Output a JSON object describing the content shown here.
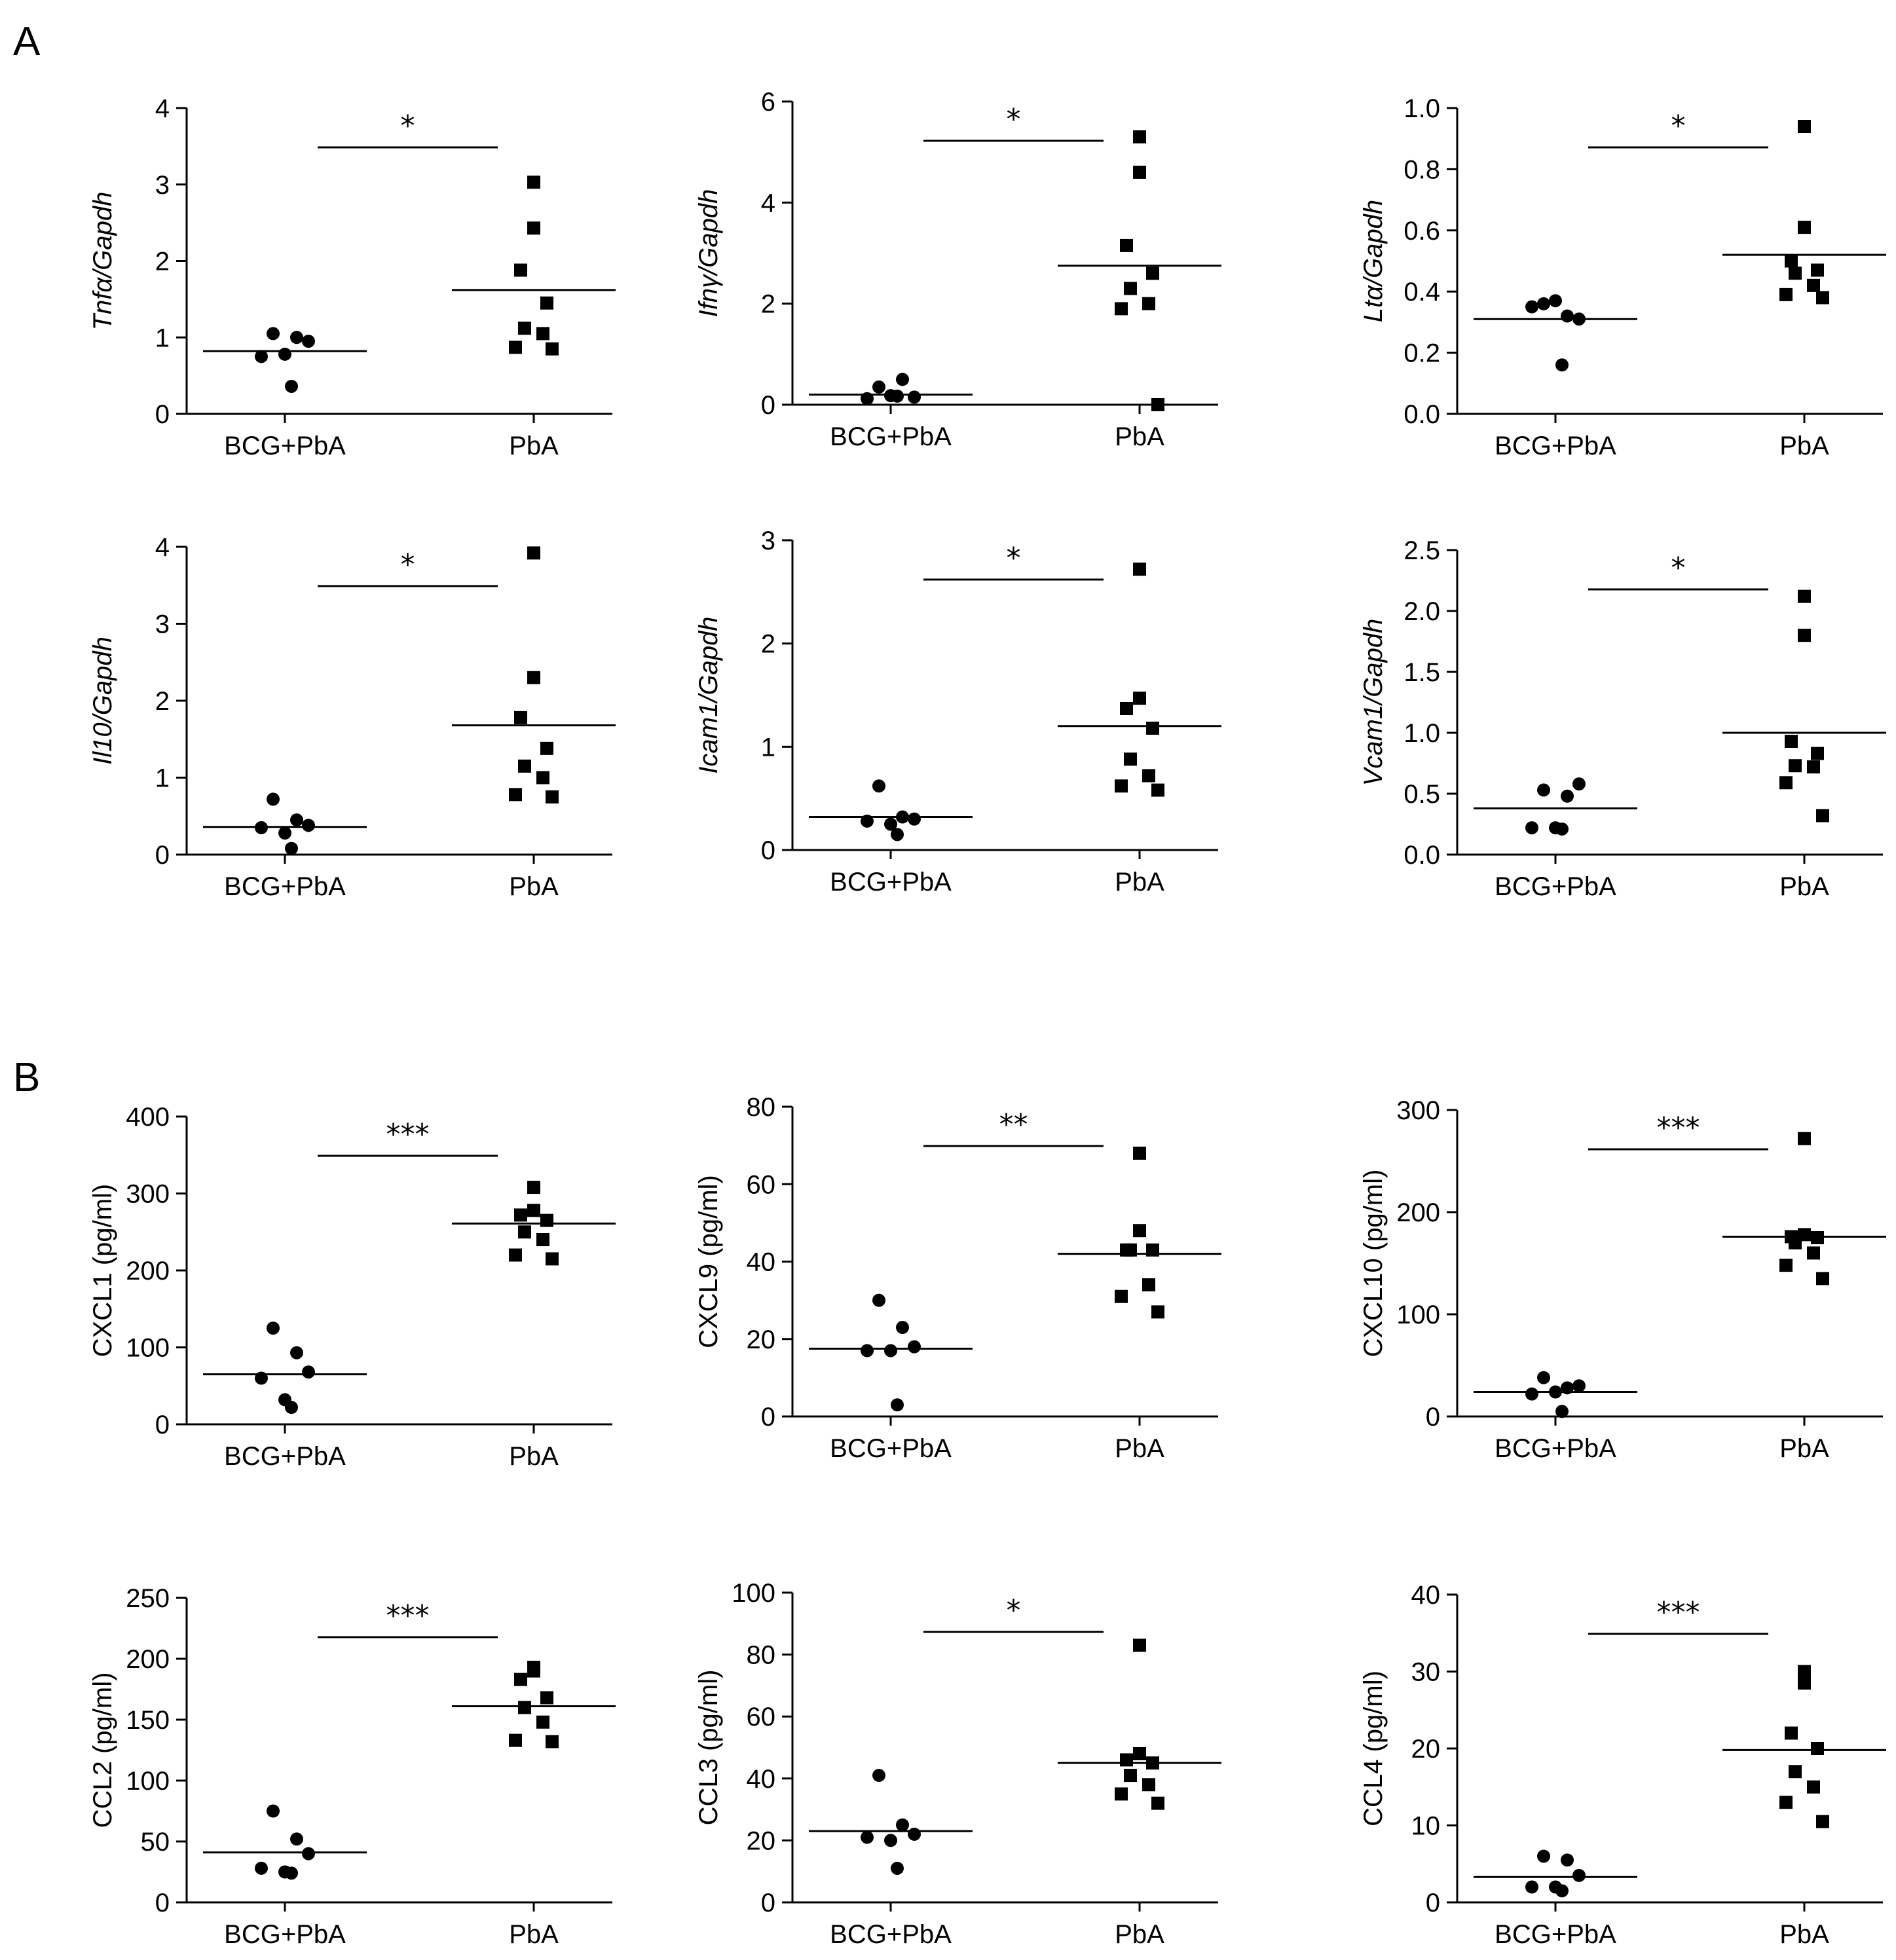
{
  "panels": [
    {
      "letter": "A"
    },
    {
      "letter": "B"
    }
  ],
  "chart_data": [
    {
      "type": "scatter",
      "ylabel": "Tnfα/Gapdh",
      "italic": true,
      "ylim": [
        0,
        4
      ],
      "yticks": [
        "0",
        "1",
        "2",
        "3",
        "4"
      ],
      "categories": [
        "BCG+PbA",
        "PbA"
      ],
      "significance": "*",
      "series": [
        {
          "name": "BCG+PbA",
          "marker": "circle",
          "values": [
            1.05,
            1.0,
            0.95,
            0.75,
            0.78,
            0.36
          ],
          "mean": 0.82
        },
        {
          "name": "PbA",
          "marker": "square",
          "values": [
            3.03,
            2.43,
            1.88,
            1.45,
            1.12,
            1.05,
            0.87,
            0.85
          ],
          "mean": 1.62
        }
      ]
    },
    {
      "type": "scatter",
      "ylabel": "Ifnγ/Gapdh",
      "italic": true,
      "ylim": [
        0,
        6
      ],
      "yticks": [
        "0",
        "2",
        "4",
        "6"
      ],
      "categories": [
        "BCG+PbA",
        "PbA"
      ],
      "significance": "*",
      "series": [
        {
          "name": "BCG+PbA",
          "marker": "circle",
          "values": [
            0.35,
            0.5,
            0.15,
            0.12,
            0.18,
            0.17
          ],
          "mean": 0.2
        },
        {
          "name": "PbA",
          "marker": "square",
          "values": [
            5.3,
            4.6,
            3.15,
            2.6,
            2.3,
            2.0,
            1.9,
            0.0
          ],
          "mean": 2.75
        }
      ]
    },
    {
      "type": "scatter",
      "ylabel": "Ltα/Gapdh",
      "italic": true,
      "ylim": [
        0,
        1.0
      ],
      "yticks": [
        "0.0",
        "0.2",
        "0.4",
        "0.6",
        "0.8",
        "1.0"
      ],
      "categories": [
        "BCG+PbA",
        "PbA"
      ],
      "significance": "*",
      "series": [
        {
          "name": "BCG+PbA",
          "marker": "circle",
          "values": [
            0.36,
            0.32,
            0.31,
            0.35,
            0.37,
            0.16
          ],
          "mean": 0.31
        },
        {
          "name": "PbA",
          "marker": "square",
          "values": [
            0.94,
            0.61,
            0.5,
            0.47,
            0.46,
            0.42,
            0.39,
            0.38
          ],
          "mean": 0.52
        }
      ]
    },
    {
      "type": "scatter",
      "ylabel": "Il10/Gapdh",
      "italic": true,
      "ylim": [
        0,
        4
      ],
      "yticks": [
        "0",
        "1",
        "2",
        "3",
        "4"
      ],
      "categories": [
        "BCG+PbA",
        "PbA"
      ],
      "significance": "*",
      "series": [
        {
          "name": "BCG+PbA",
          "marker": "circle",
          "values": [
            0.72,
            0.45,
            0.38,
            0.35,
            0.28,
            0.08
          ],
          "mean": 0.36
        },
        {
          "name": "PbA",
          "marker": "square",
          "values": [
            3.92,
            2.3,
            1.78,
            1.38,
            1.15,
            1.0,
            0.78,
            0.75
          ],
          "mean": 1.68
        }
      ]
    },
    {
      "type": "scatter",
      "ylabel": "Icam1/Gapdh",
      "italic": true,
      "ylim": [
        0,
        3
      ],
      "yticks": [
        "0",
        "1",
        "2",
        "3"
      ],
      "categories": [
        "BCG+PbA",
        "PbA"
      ],
      "significance": "*",
      "series": [
        {
          "name": "BCG+PbA",
          "marker": "circle",
          "values": [
            0.62,
            0.32,
            0.3,
            0.28,
            0.25,
            0.15
          ],
          "mean": 0.32
        },
        {
          "name": "PbA",
          "marker": "square",
          "values": [
            2.72,
            1.47,
            1.37,
            1.18,
            0.88,
            0.72,
            0.62,
            0.58
          ],
          "mean": 1.2
        }
      ]
    },
    {
      "type": "scatter",
      "ylabel": "Vcam1/Gapdh",
      "italic": true,
      "ylim": [
        0,
        2.5
      ],
      "yticks": [
        "0.0",
        "0.5",
        "1.0",
        "1.5",
        "2.0",
        "2.5"
      ],
      "categories": [
        "BCG+PbA",
        "PbA"
      ],
      "significance": "*",
      "series": [
        {
          "name": "BCG+PbA",
          "marker": "circle",
          "values": [
            0.53,
            0.48,
            0.58,
            0.22,
            0.22,
            0.21
          ],
          "mean": 0.38
        },
        {
          "name": "PbA",
          "marker": "square",
          "values": [
            2.12,
            1.8,
            0.93,
            0.83,
            0.73,
            0.72,
            0.59,
            0.32
          ],
          "mean": 1.0
        }
      ]
    },
    {
      "type": "scatter",
      "ylabel": "CXCL1 (pg/ml)",
      "italic": false,
      "ylim": [
        0,
        400
      ],
      "yticks": [
        "0",
        "100",
        "200",
        "300",
        "400"
      ],
      "categories": [
        "BCG+PbA",
        "PbA"
      ],
      "significance": "***",
      "series": [
        {
          "name": "BCG+PbA",
          "marker": "circle",
          "values": [
            125,
            93,
            68,
            60,
            32,
            22
          ],
          "mean": 65
        },
        {
          "name": "PbA",
          "marker": "square",
          "values": [
            308,
            278,
            272,
            265,
            250,
            240,
            220,
            215
          ],
          "mean": 261
        }
      ]
    },
    {
      "type": "scatter",
      "ylabel": "CXCL9 (pg/ml)",
      "italic": false,
      "ylim": [
        0,
        80
      ],
      "yticks": [
        "0",
        "20",
        "40",
        "60",
        "80"
      ],
      "categories": [
        "BCG+PbA",
        "PbA"
      ],
      "significance": "**",
      "series": [
        {
          "name": "BCG+PbA",
          "marker": "circle",
          "values": [
            30,
            23,
            18,
            17,
            17,
            3
          ],
          "mean": 17.5
        },
        {
          "name": "PbA",
          "marker": "square",
          "values": [
            68,
            48,
            43,
            43,
            43,
            34,
            31,
            27
          ],
          "mean": 42
        }
      ]
    },
    {
      "type": "scatter",
      "ylabel": "CXCL10 (pg/ml)",
      "italic": false,
      "ylim": [
        0,
        300
      ],
      "yticks": [
        "0",
        "100",
        "200",
        "300"
      ],
      "categories": [
        "BCG+PbA",
        "PbA"
      ],
      "significance": "***",
      "series": [
        {
          "name": "BCG+PbA",
          "marker": "circle",
          "values": [
            38,
            28,
            30,
            22,
            24,
            5
          ],
          "mean": 24
        },
        {
          "name": "PbA",
          "marker": "square",
          "values": [
            272,
            178,
            176,
            175,
            170,
            160,
            148,
            135
          ],
          "mean": 176
        }
      ]
    },
    {
      "type": "scatter",
      "ylabel": "CCL2 (pg/ml)",
      "italic": false,
      "ylim": [
        0,
        250
      ],
      "yticks": [
        "0",
        "50",
        "100",
        "150",
        "200",
        "250"
      ],
      "categories": [
        "BCG+PbA",
        "PbA"
      ],
      "significance": "***",
      "series": [
        {
          "name": "BCG+PbA",
          "marker": "circle",
          "values": [
            75,
            52,
            40,
            28,
            25,
            24
          ],
          "mean": 41
        },
        {
          "name": "PbA",
          "marker": "square",
          "values": [
            193,
            190,
            183,
            168,
            160,
            148,
            133,
            132
          ],
          "mean": 161
        }
      ]
    },
    {
      "type": "scatter",
      "ylabel": "CCL3 (pg/ml)",
      "italic": false,
      "ylim": [
        0,
        100
      ],
      "yticks": [
        "0",
        "20",
        "40",
        "60",
        "80",
        "100"
      ],
      "categories": [
        "BCG+PbA",
        "PbA"
      ],
      "significance": "*",
      "series": [
        {
          "name": "BCG+PbA",
          "marker": "circle",
          "values": [
            41,
            25,
            22,
            21,
            20,
            11
          ],
          "mean": 23
        },
        {
          "name": "PbA",
          "marker": "square",
          "values": [
            83,
            48,
            46,
            45,
            41,
            38,
            35,
            32
          ],
          "mean": 45
        }
      ]
    },
    {
      "type": "scatter",
      "ylabel": "CCL4 (pg/ml)",
      "italic": false,
      "ylim": [
        0,
        40
      ],
      "yticks": [
        "0",
        "10",
        "20",
        "30",
        "40"
      ],
      "categories": [
        "BCG+PbA",
        "PbA"
      ],
      "significance": "***",
      "series": [
        {
          "name": "BCG+PbA",
          "marker": "circle",
          "values": [
            6,
            5.5,
            3.5,
            2,
            2,
            1.5
          ],
          "mean": 3.3
        },
        {
          "name": "PbA",
          "marker": "square",
          "values": [
            30,
            28.5,
            22,
            20,
            17,
            15,
            13,
            10.5
          ],
          "mean": 19.8
        }
      ]
    }
  ]
}
